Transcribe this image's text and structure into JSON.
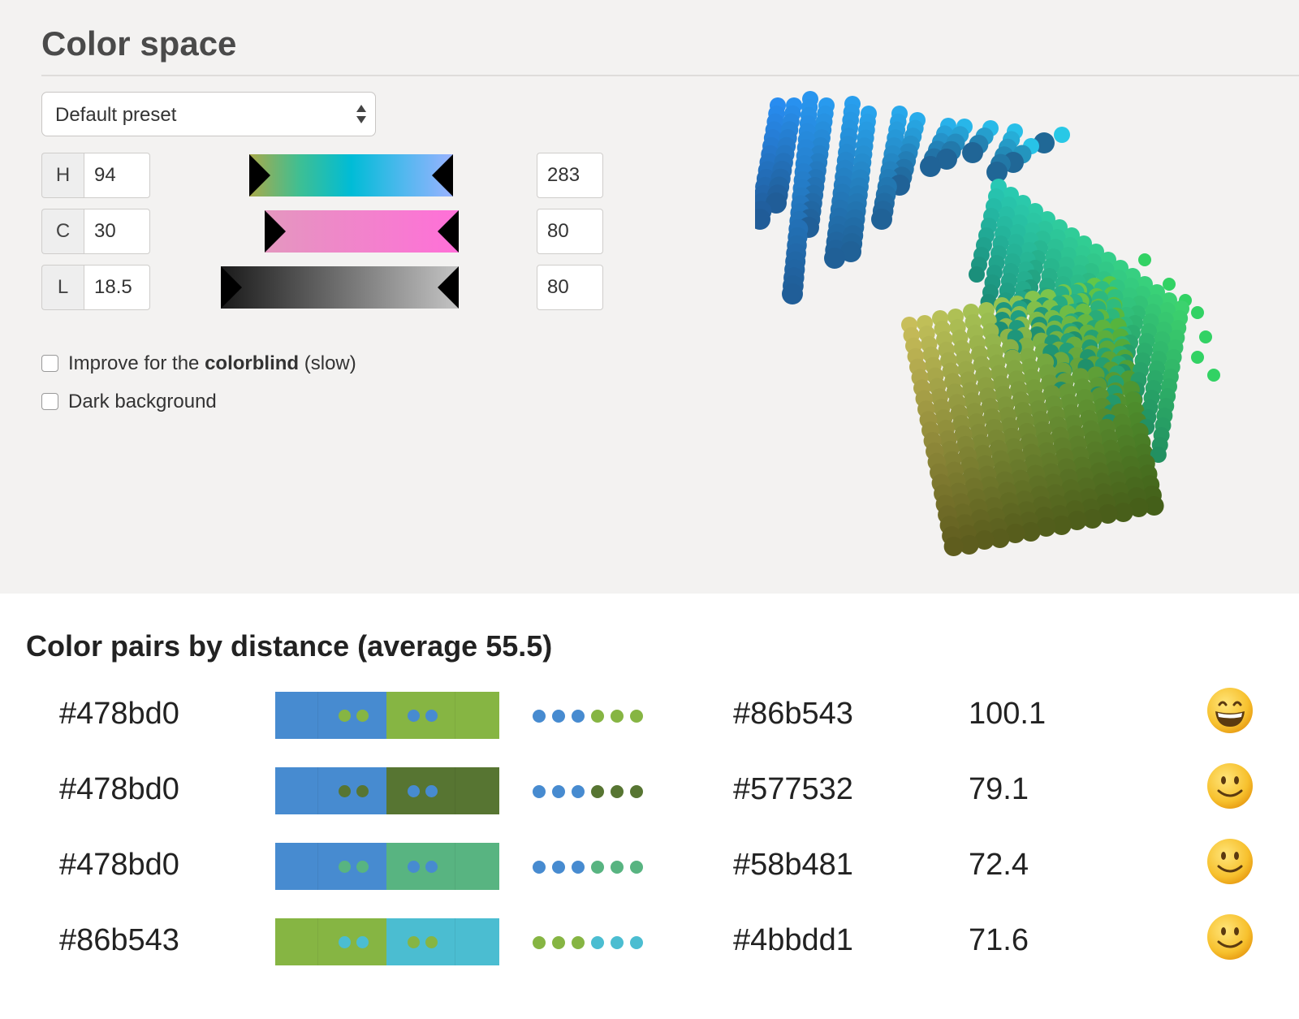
{
  "color_space": {
    "title": "Color space",
    "preset": "Default preset",
    "params": [
      {
        "label": "H",
        "min": "94",
        "max": "283",
        "gradient": [
          "#a9a94a",
          "#3dbf94",
          "#00bcd6",
          "#4fb8ee",
          "#9ab2ff"
        ]
      },
      {
        "label": "C",
        "min": "30",
        "max": "80",
        "gradient": [
          "#e497bf",
          "#ff6fd8"
        ]
      },
      {
        "label": "L",
        "min": "18.5",
        "max": "80",
        "gradient": [
          "#1a1a1a",
          "#c4c4c4"
        ]
      }
    ],
    "options": [
      {
        "before": "Improve for the ",
        "bold": "colorblind",
        "after": " (slow)",
        "checked": false
      },
      {
        "before": "Dark background",
        "bold": "",
        "after": "",
        "checked": false
      }
    ]
  },
  "pairs": {
    "title": "Color pairs by distance (average 55.5)",
    "rows": [
      {
        "color1": "#478bd0",
        "color2": "#86b543",
        "distance": "100.1",
        "face": "grin-face-icon"
      },
      {
        "color1": "#478bd0",
        "color2": "#577532",
        "distance": "79.1",
        "face": "smile-face-icon"
      },
      {
        "color1": "#478bd0",
        "color2": "#58b481",
        "distance": "72.4",
        "face": "smile-face-icon"
      },
      {
        "color1": "#86b543",
        "color2": "#4bbdd1",
        "distance": "71.6",
        "face": "smile-face-icon"
      }
    ]
  }
}
